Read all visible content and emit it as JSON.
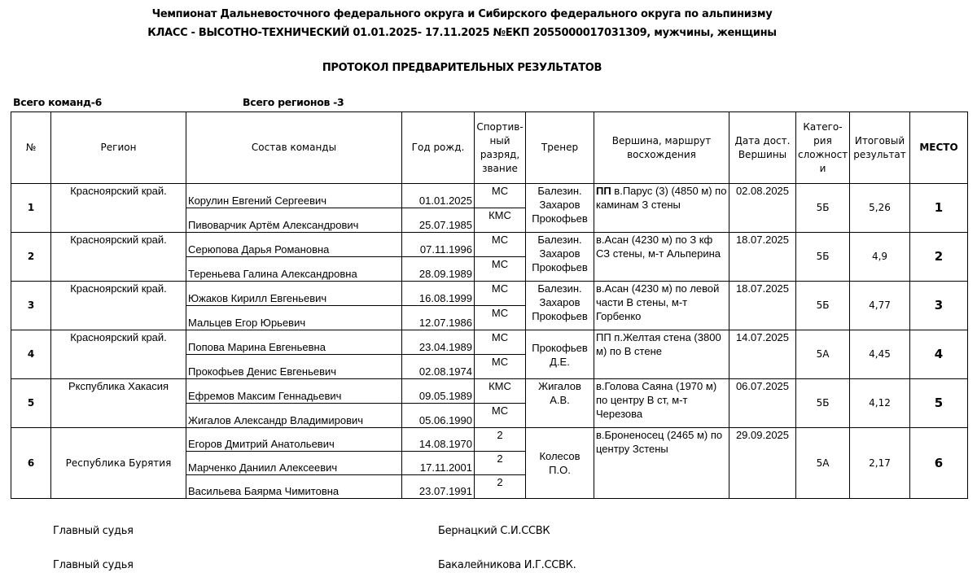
{
  "header": {
    "line1": "Чемпионат Дальневосточного федерального округа и Сибирского федерального округа по альпинизму",
    "line2": "КЛАСС - ВЫСОТНО-ТЕХНИЧЕСКИЙ 01.01.2025- 17.11.2025 №ЕКП 2055000017031309, мужчины, женщины",
    "protocol": "ПРОТОКОЛ ПРЕДВАРИТЕЛЬНЫХ РЕЗУЛЬТАТОВ",
    "total_teams": "Всего команд-6",
    "total_regions": "Всего регионов -3"
  },
  "columns": [
    "№",
    "Регион",
    "Состав команды",
    "Год рожд.",
    "Спортив-ный разряд, звание",
    "Тренер",
    "Вершина, маршрут восхождения",
    "Дата дост. Вершины",
    "Катего-рия сложност и",
    "Итоговый результат",
    "МЕСТО"
  ],
  "teams": [
    {
      "no": "1",
      "region": "Красноярский край.",
      "coach": "Балезин. Захаров Прокофьев",
      "route_bold": "ПП",
      "route": " в.Парус (3) (4850 м) по каминам З стены",
      "date": "02.08.2025",
      "category": "5Б",
      "result": "5,26",
      "place": "1",
      "members": [
        {
          "name": "Корулин Евгений Сергеевич",
          "dob": "01.01.2025",
          "rank": "МС"
        },
        {
          "name": "Пивоварчик Артём Александрович",
          "dob": "25.07.1985",
          "rank": "КМС"
        }
      ]
    },
    {
      "no": "2",
      "region": "Красноярский край.",
      "coach": "Балезин. Захаров Прокофьев",
      "route_bold": "",
      "route": " в.Асан (4230 м) по З кф СЗ стены, м-т Альперина",
      "date": "18.07.2025",
      "category": "5Б",
      "result": "4,9",
      "place": "2",
      "members": [
        {
          "name": "Серюпова Дарья Романовна",
          "dob": "07.11.1996",
          "rank": "МС"
        },
        {
          "name": "Тереньева Галина Александровна",
          "dob": "28.09.1989",
          "rank": "МС"
        }
      ]
    },
    {
      "no": "3",
      "region": "Красноярский край.",
      "coach": "Балезин. Захаров Прокофьев",
      "route_bold": "",
      "route": " в.Асан (4230 м) по левой части В стены, м-т Горбенко",
      "date": "18.07.2025",
      "category": "5Б",
      "result": "4,77",
      "place": "3",
      "members": [
        {
          "name": "Южаков Кирилл Евгеньевич",
          "dob": "16.08.1999",
          "rank": "МС"
        },
        {
          "name": "Мальцев Егор Юрьевич",
          "dob": "12.07.1986",
          "rank": "МС"
        }
      ]
    },
    {
      "no": "4",
      "region": "Красноярский край.",
      "coach": "Прокофьев Д.Е.",
      "route_bold": "",
      "route": " ПП п.Желтая стена (3800 м) по В стене",
      "date": "14.07.2025",
      "category": "5А",
      "result": "4,45",
      "place": "4",
      "members": [
        {
          "name": "Попова Марина Евгеньевна",
          "dob": "23.04.1989",
          "rank": "МС"
        },
        {
          "name": "Прокофьев Денис Евгеньевич",
          "dob": "02.08.1974",
          "rank": "МС"
        }
      ]
    },
    {
      "no": "5",
      "region": "Ркспублика Хакасия",
      "coach": "Жигалов А.В.",
      "route_bold": "",
      "route": " в.Голова Саяна (1970 м) по центру В ст, м-т Черезова",
      "date": "06.07.2025",
      "category": "5Б",
      "result": "4,12",
      "place": "5",
      "members": [
        {
          "name": "Ефремов Максим Геннадьевич",
          "dob": "09.05.1989",
          "rank": "КМС"
        },
        {
          "name": "Жигалов Александр Владимирович",
          "dob": "05.06.1990",
          "rank": "МС"
        }
      ]
    },
    {
      "no": "6",
      "region": "Республика Бурятия",
      "coach": "Колесов П.О.",
      "route_bold": "",
      "route": " в.Броненосец (2465 м) по центру Зстены",
      "date": "29.09.2025",
      "category": "5А",
      "result": "2,17",
      "place": "6",
      "members": [
        {
          "name": "Егоров Дмитрий Анатольевич",
          "dob": "14.08.1970",
          "rank": "2"
        },
        {
          "name": "Марченко Даниил Алексеевич",
          "dob": "17.11.2001",
          "rank": "2"
        },
        {
          "name": "Васильева Баярма Чимитовна",
          "dob": "23.07.1991",
          "rank": "2"
        }
      ]
    }
  ],
  "footer": {
    "judge1_label": "Главный судья",
    "judge1_name": "Бернацкий С.И.ССВК",
    "judge2_label": "Главный судья",
    "judge2_name": "Бакалейникова И.Г.ССВК."
  }
}
